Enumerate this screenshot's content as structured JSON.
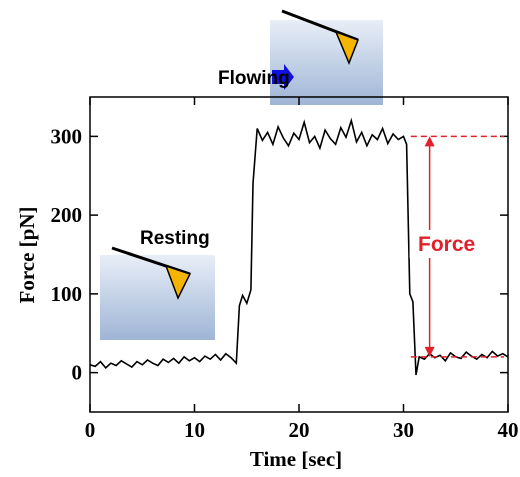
{
  "chart_data": {
    "type": "line",
    "x_label": "Time [sec]",
    "y_label": "Force [pN]",
    "xlim": [
      0,
      40
    ],
    "xticks": [
      0,
      10,
      20,
      30,
      40
    ],
    "ylim": [
      -50,
      350
    ],
    "yticks": [
      0,
      100,
      200,
      300
    ],
    "color": "#000000",
    "x": [
      0,
      0.5,
      1,
      1.5,
      2,
      2.5,
      3,
      3.5,
      4,
      4.5,
      5,
      5.5,
      6,
      6.5,
      7,
      7.5,
      8,
      8.5,
      9,
      9.5,
      10,
      10.5,
      11,
      11.5,
      12,
      12.5,
      13,
      13.5,
      14,
      14.3,
      14.6,
      15,
      15.4,
      15.6,
      16,
      16.5,
      17,
      17.5,
      18,
      18.5,
      19,
      19.5,
      20,
      20.5,
      21,
      21.5,
      22,
      22.5,
      23,
      23.5,
      24,
      24.5,
      25,
      25.5,
      26,
      26.5,
      27,
      27.5,
      28,
      28.5,
      29,
      29.5,
      30,
      30.3,
      30.6,
      30.9,
      31.2,
      31.5,
      32,
      32.5,
      33,
      33.5,
      34,
      34.5,
      35,
      35.5,
      36,
      36.5,
      37,
      37.5,
      38,
      38.5,
      39,
      39.5,
      40
    ],
    "values": [
      10,
      8,
      14,
      6,
      12,
      9,
      15,
      11,
      7,
      14,
      10,
      16,
      12,
      9,
      17,
      13,
      18,
      12,
      20,
      15,
      19,
      14,
      21,
      17,
      23,
      16,
      24,
      19,
      12,
      85,
      98,
      88,
      105,
      240,
      310,
      295,
      305,
      290,
      312,
      298,
      288,
      304,
      296,
      318,
      292,
      300,
      285,
      308,
      297,
      290,
      311,
      299,
      320,
      293,
      305,
      288,
      302,
      296,
      310,
      291,
      303,
      296,
      300,
      290,
      100,
      90,
      -3,
      20,
      17,
      24,
      19,
      22,
      15,
      25,
      20,
      18,
      26,
      21,
      17,
      23,
      19,
      27,
      21,
      24,
      20
    ],
    "force_span": {
      "from": 20,
      "to": 300,
      "label": "Force",
      "color": "#e0202a"
    },
    "annotations": [
      "Resting",
      "Flowing"
    ]
  }
}
